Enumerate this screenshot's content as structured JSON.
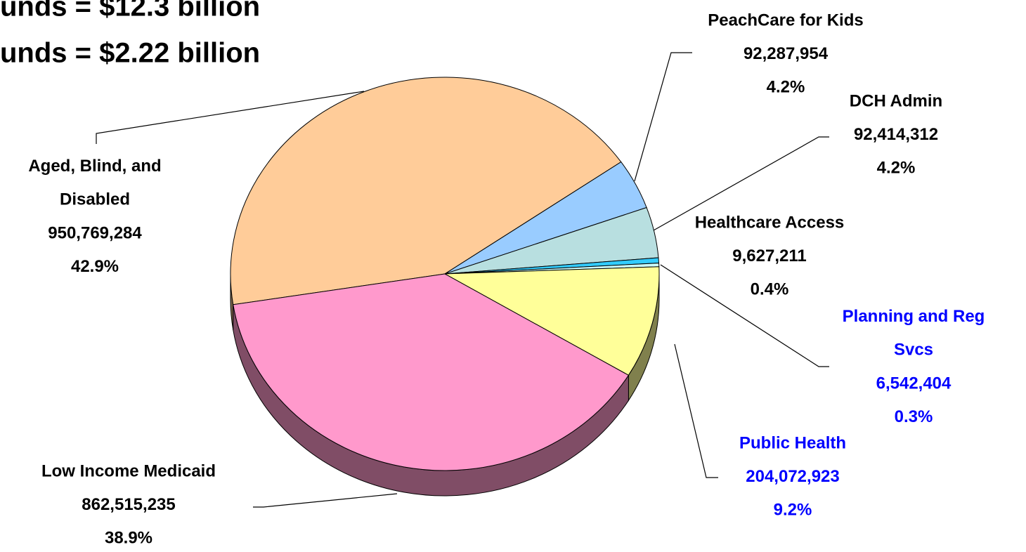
{
  "chart_data": {
    "type": "pie",
    "title_lines": [
      "unds = $12.3 billion",
      "unds = $2.22 billion"
    ],
    "categories": [
      "Aged, Blind, and Disabled",
      "PeachCare for Kids",
      "DCH Admin",
      "Healthcare Access",
      "Planning and Reg Svcs",
      "Public Health",
      "Low Income Medicaid"
    ],
    "values": [
      950769284,
      92287954,
      92414312,
      9627211,
      6542404,
      204072923,
      862515235
    ],
    "value_labels": [
      "950,769,284",
      "92,287,954",
      "92,414,312",
      "9,627,211",
      "6,542,404",
      "204,072,923",
      "862,515,235"
    ],
    "percent_labels": [
      "42.9%",
      "4.2%",
      "4.2%",
      "0.4%",
      "0.3%",
      "9.2%",
      "38.9%"
    ],
    "colors": [
      "#ffcc99",
      "#99ccff",
      "#b8dfe0",
      "#33ccff",
      "#ccffff",
      "#ffff99",
      "#ff99cc"
    ],
    "label_colors": [
      "#000000",
      "#000000",
      "#000000",
      "#000000",
      "#0000ff",
      "#0000ff",
      "#000000"
    ]
  }
}
